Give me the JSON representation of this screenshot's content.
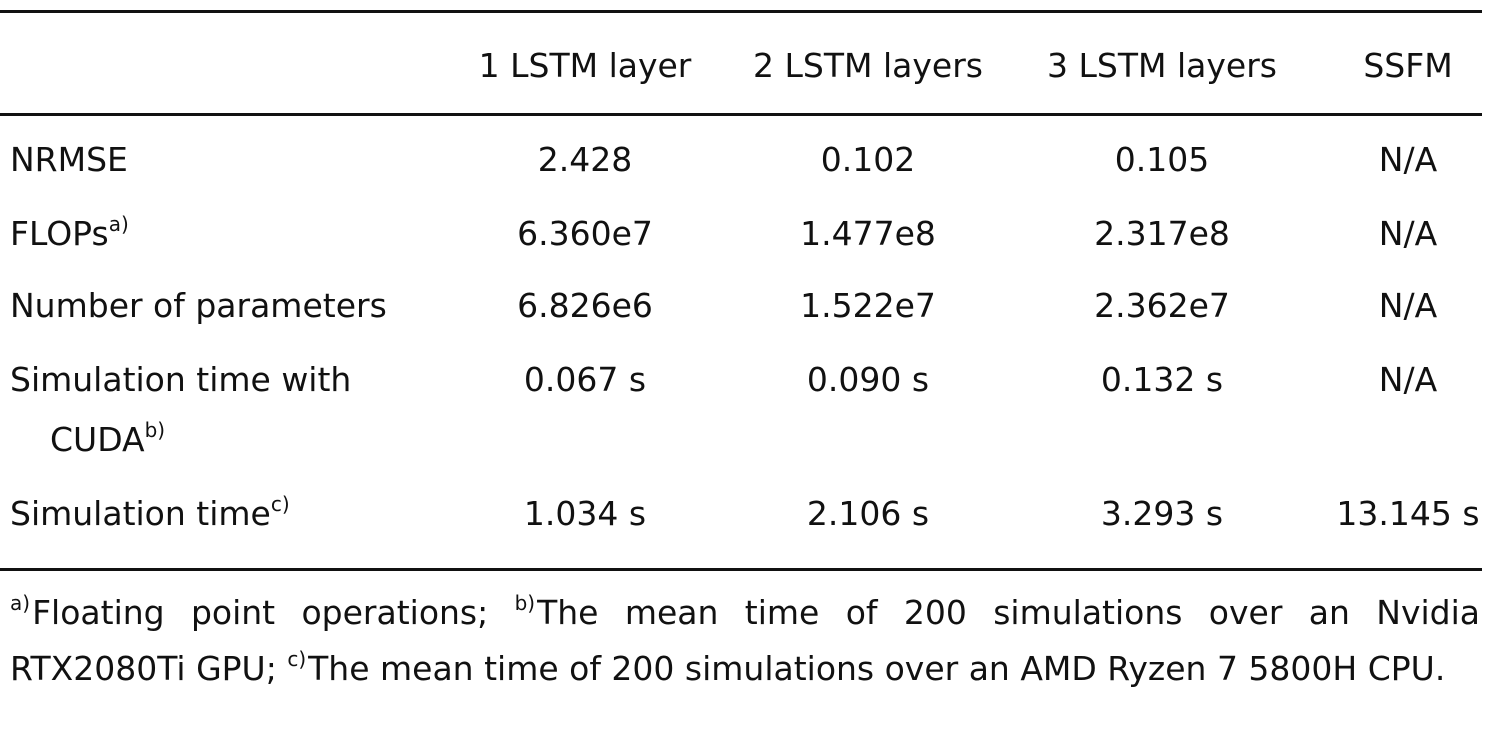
{
  "table": {
    "columns": [
      "1 LSTM layer",
      "2 LSTM layers",
      "3 LSTM layers",
      "SSFM"
    ],
    "rows": [
      {
        "label": "NRMSE",
        "cells": [
          "2.428",
          "0.102",
          "0.105",
          "N/A"
        ]
      },
      {
        "label": "FLOPs",
        "note": "a)",
        "cells": [
          "6.360e7",
          "1.477e8",
          "2.317e8",
          "N/A"
        ]
      },
      {
        "label": "Number of parameters",
        "cells": [
          "6.826e6",
          "1.522e7",
          "2.362e7",
          "N/A"
        ]
      },
      {
        "label": "Simulation time with CUDA",
        "note": "b)",
        "cells": [
          "0.067 s",
          "0.090 s",
          "0.132 s",
          "N/A"
        ]
      },
      {
        "label": "Simulation time",
        "note": "c)",
        "cells": [
          "1.034 s",
          "2.106 s",
          "3.293 s",
          "13.145 s"
        ]
      }
    ]
  },
  "footnotes": [
    {
      "mark": "a)",
      "text": "Floating point operations;"
    },
    {
      "mark": "b)",
      "text": "The mean time of 200 simulations over an Nvidia RTX2080Ti GPU;"
    },
    {
      "mark": "c)",
      "text": "The mean time of 200 simulations over an AMD Ryzen 7 5800H CPU."
    }
  ]
}
